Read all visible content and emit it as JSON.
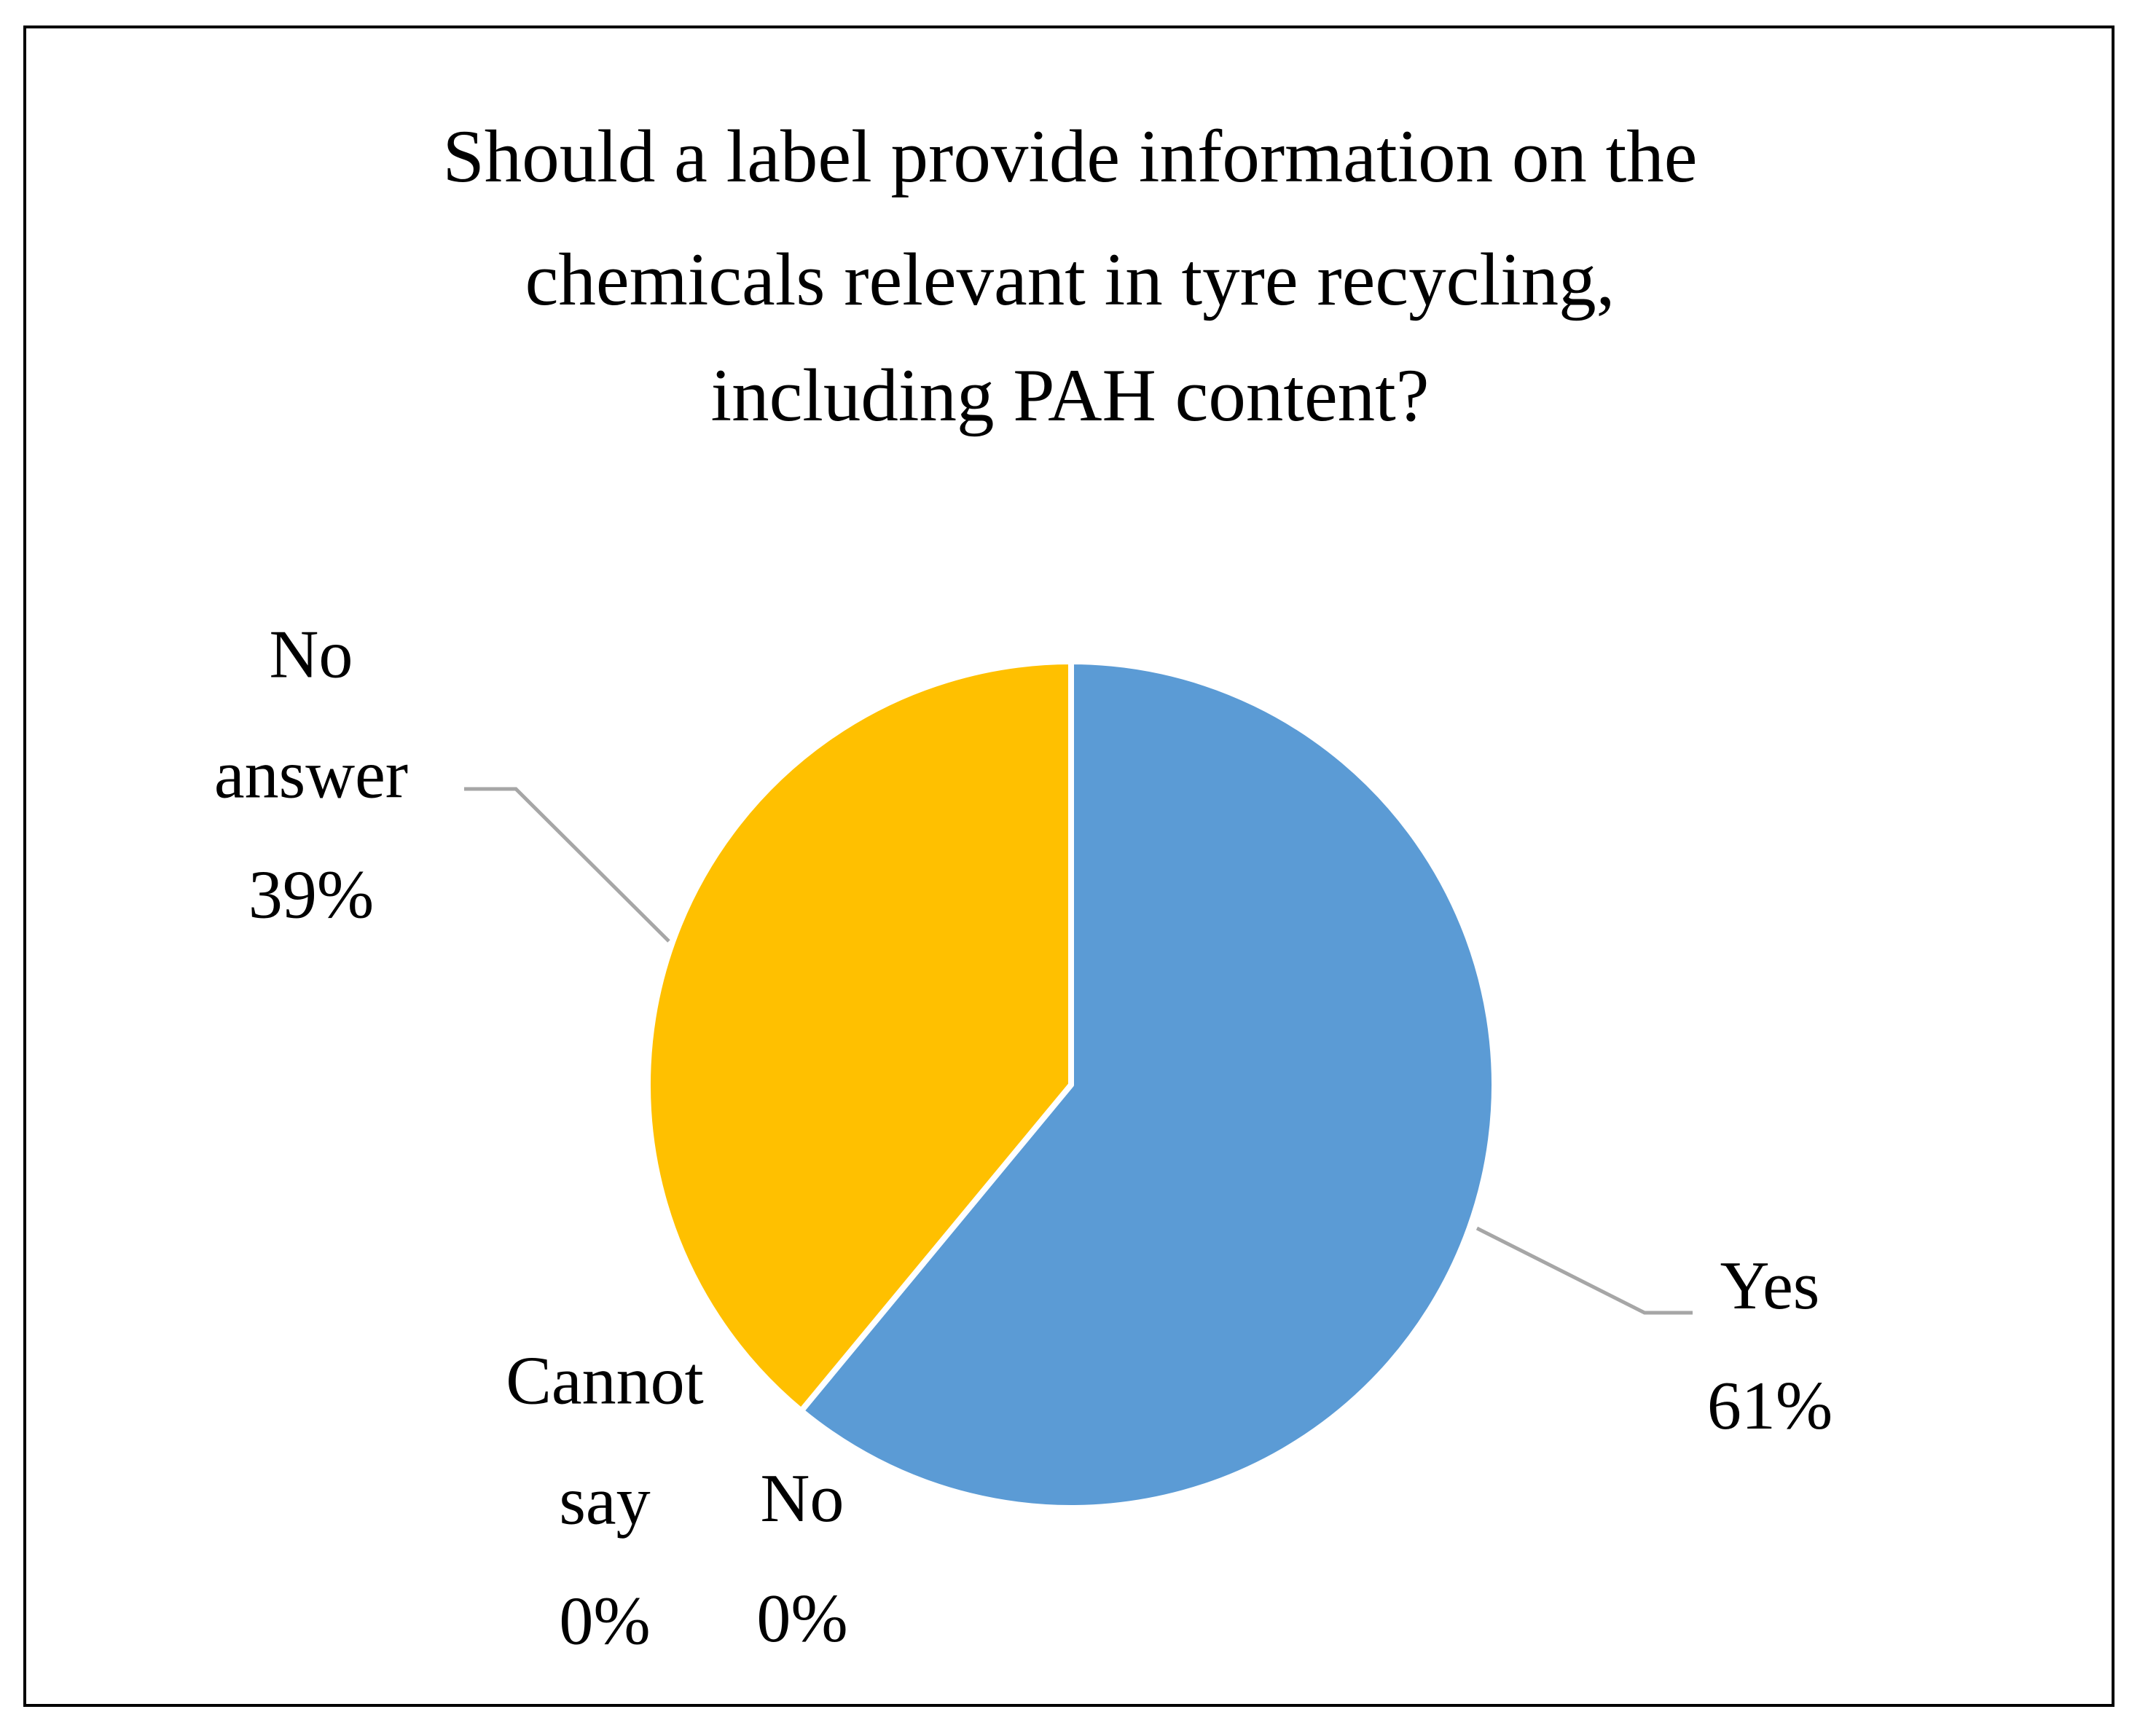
{
  "chart_data": {
    "type": "pie",
    "title": [
      "Should a label provide information on the",
      "chemicals relevant in tyre recycling,",
      "including PAH content?"
    ],
    "categories": [
      "Yes",
      "No",
      "Cannot say",
      "No answer"
    ],
    "values": [
      61,
      0,
      0,
      39
    ],
    "value_labels": [
      "61%",
      "0%",
      "0%",
      "39%"
    ],
    "colors": [
      "#5b9bd5",
      "#ed7d31",
      "#a5a5a5",
      "#ffc000"
    ]
  }
}
